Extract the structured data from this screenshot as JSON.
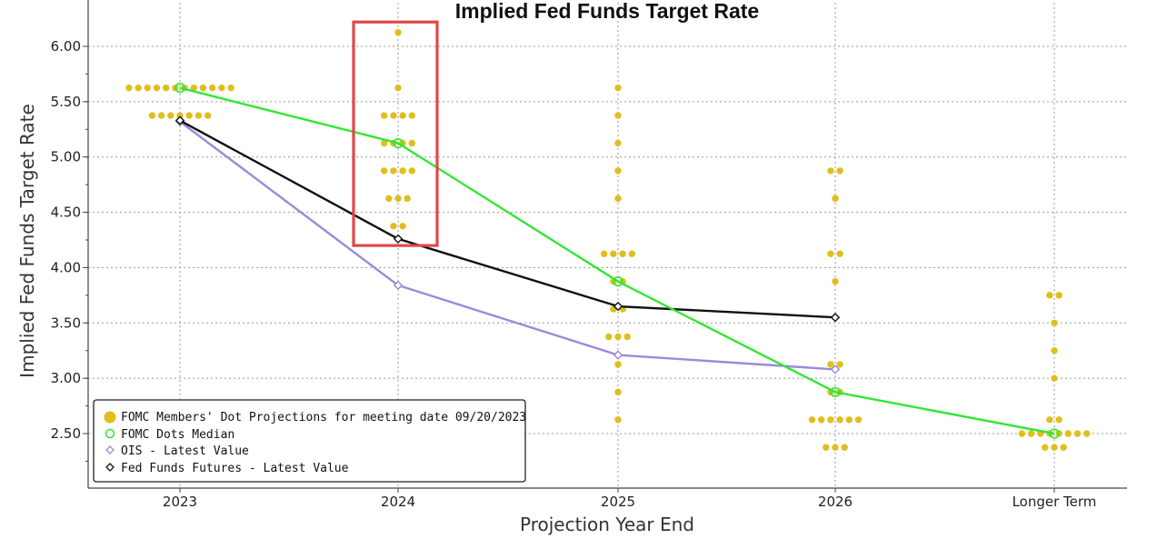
{
  "chart_data": {
    "type": "scatter",
    "title": "Implied Fed Funds Target Rate",
    "xlabel": "Projection Year End",
    "ylabel": "Implied Fed Funds Target Rate",
    "categories": [
      "2023",
      "2024",
      "2025",
      "2026",
      "Longer Term"
    ],
    "ylim": [
      2.125,
      6.2
    ],
    "yticks": [
      "2.50",
      "3.00",
      "3.50",
      "4.00",
      "4.50",
      "5.00",
      "5.50",
      "6.00"
    ],
    "grid": true,
    "legend_position": "bottom-left",
    "dots": {
      "name": "FOMC Members' Dot Projections for meeting date 09/20/2023",
      "color": "#E0BE1C",
      "groups": [
        {
          "category": "2023",
          "levels": [
            {
              "y": 5.625,
              "count": 12
            },
            {
              "y": 5.375,
              "count": 7
            }
          ]
        },
        {
          "category": "2024",
          "levels": [
            {
              "y": 6.125,
              "count": 1
            },
            {
              "y": 5.625,
              "count": 1
            },
            {
              "y": 5.375,
              "count": 4
            },
            {
              "y": 5.125,
              "count": 4
            },
            {
              "y": 4.875,
              "count": 4
            },
            {
              "y": 4.625,
              "count": 3
            },
            {
              "y": 4.375,
              "count": 2
            }
          ]
        },
        {
          "category": "2025",
          "levels": [
            {
              "y": 5.625,
              "count": 1
            },
            {
              "y": 5.375,
              "count": 1
            },
            {
              "y": 5.125,
              "count": 1
            },
            {
              "y": 4.875,
              "count": 1
            },
            {
              "y": 4.625,
              "count": 1
            },
            {
              "y": 4.125,
              "count": 4
            },
            {
              "y": 3.875,
              "count": 2
            },
            {
              "y": 3.625,
              "count": 2
            },
            {
              "y": 3.375,
              "count": 3
            },
            {
              "y": 3.125,
              "count": 1
            },
            {
              "y": 2.875,
              "count": 1
            },
            {
              "y": 2.625,
              "count": 1
            }
          ]
        },
        {
          "category": "2026",
          "levels": [
            {
              "y": 4.875,
              "count": 2
            },
            {
              "y": 4.625,
              "count": 1
            },
            {
              "y": 4.125,
              "count": 2
            },
            {
              "y": 3.875,
              "count": 1
            },
            {
              "y": 3.125,
              "count": 2
            },
            {
              "y": 2.875,
              "count": 2
            },
            {
              "y": 2.625,
              "count": 6
            },
            {
              "y": 2.375,
              "count": 3
            }
          ]
        },
        {
          "category": "Longer Term",
          "levels": [
            {
              "y": 3.75,
              "count": 2
            },
            {
              "y": 3.5,
              "count": 1
            },
            {
              "y": 3.25,
              "count": 1
            },
            {
              "y": 3.0,
              "count": 1
            },
            {
              "y": 2.625,
              "count": 2
            },
            {
              "y": 2.5,
              "count": 8
            },
            {
              "y": 2.375,
              "count": 3
            }
          ]
        }
      ]
    },
    "series": [
      {
        "name": "FOMC Dots Median",
        "color": "#33E633",
        "marker": "circle",
        "values": [
          5.625,
          5.125,
          3.875,
          2.875,
          2.5
        ]
      },
      {
        "name": "OIS - Latest Value",
        "color": "#9B8AD8",
        "marker": "diamond",
        "values": [
          5.32,
          3.84,
          3.21,
          3.08,
          null
        ]
      },
      {
        "name": "Fed Funds Futures - Latest Value",
        "color": "#111111",
        "marker": "diamond",
        "values": [
          5.33,
          4.26,
          3.65,
          3.55,
          null
        ]
      }
    ],
    "highlight_box": {
      "category": "2024",
      "y_range": [
        4.2,
        6.22
      ],
      "color": "#E04848"
    }
  }
}
